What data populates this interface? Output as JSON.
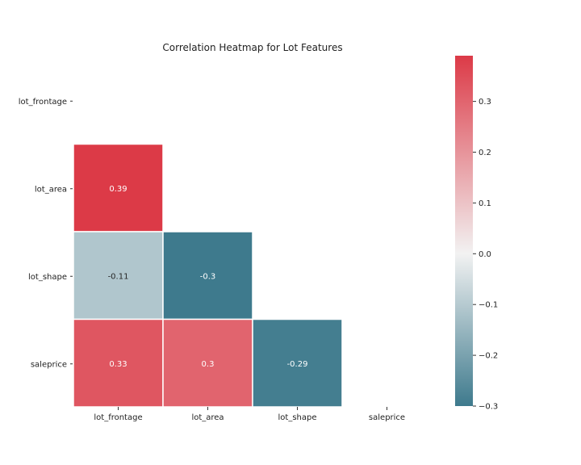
{
  "chart_data": {
    "type": "heatmap",
    "title": "Correlation Heatmap for Lot Features",
    "xlabel": "",
    "ylabel": "",
    "row_labels": [
      "lot_frontage",
      "lot_area",
      "lot_shape",
      "saleprice"
    ],
    "col_labels": [
      "lot_frontage",
      "lot_area",
      "lot_shape",
      "saleprice"
    ],
    "mask": "upper-triangle-including-diagonal",
    "cells": [
      {
        "row": 1,
        "col": 0,
        "value": 0.39,
        "label": "0.39"
      },
      {
        "row": 2,
        "col": 0,
        "value": -0.11,
        "label": "-0.11"
      },
      {
        "row": 2,
        "col": 1,
        "value": -0.3,
        "label": "-0.3"
      },
      {
        "row": 3,
        "col": 0,
        "value": 0.33,
        "label": "0.33"
      },
      {
        "row": 3,
        "col": 1,
        "value": 0.3,
        "label": "0.3"
      },
      {
        "row": 3,
        "col": 2,
        "value": -0.29,
        "label": "-0.29"
      }
    ],
    "colorbar": {
      "vmin": -0.3,
      "vmax": 0.39,
      "ticks": [
        0.3,
        0.2,
        0.1,
        0.0,
        -0.1,
        -0.2,
        -0.3
      ],
      "tick_labels": [
        "0.3",
        "0.2",
        "0.1",
        "0.0",
        "−0.1",
        "−0.2",
        "−0.3"
      ],
      "colors": {
        "low": "#3e7a8d",
        "mid": "#f2f2f2",
        "high": "#dc3a47"
      }
    },
    "grid": false,
    "legend": "colorbar-right"
  }
}
